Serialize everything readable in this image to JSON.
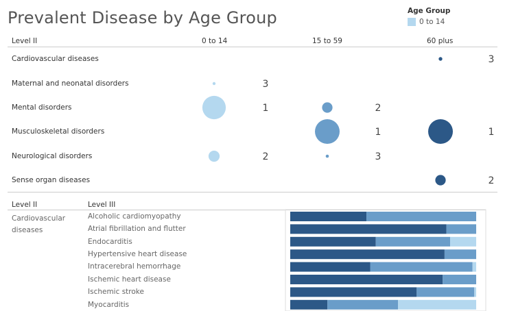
{
  "title": "Prevalent Disease by Age Group",
  "legend": {
    "title": "Age Group",
    "item_label": "0 to 14"
  },
  "colors": {
    "c1": "#b4d8ef",
    "c2": "#6a9dc9",
    "c3": "#2c5887"
  },
  "top": {
    "col_header": "Level II",
    "age_groups": [
      "0 to 14",
      "15 to 59",
      "60 plus"
    ]
  },
  "bottom": {
    "col_level2": "Level II",
    "col_level3": "Level III",
    "category": "Cardiovascular diseases"
  },
  "chart_data": [
    {
      "type": "scatter",
      "title": "Prevalent Disease by Age Group",
      "categories": [
        "Cardiovascular diseases",
        "Maternal and neonatal disorders",
        "Mental disorders",
        "Musculoskeletal disorders",
        "Neurological disorders",
        "Sense organ diseases"
      ],
      "columns": [
        "0 to 14",
        "15 to 59",
        "60 plus"
      ],
      "cells": [
        {
          "row": "Cardiovascular diseases",
          "col": "60 plus",
          "rank": "3",
          "size": 0.15
        },
        {
          "row": "Maternal and neonatal disorders",
          "col": "0 to 14",
          "rank": "3",
          "size": 0.12
        },
        {
          "row": "Mental disorders",
          "col": "0 to 14",
          "rank": "1",
          "size": 0.95
        },
        {
          "row": "Mental disorders",
          "col": "15 to 59",
          "rank": "2",
          "size": 0.42
        },
        {
          "row": "Musculoskeletal disorders",
          "col": "15 to 59",
          "rank": "1",
          "size": 1.0
        },
        {
          "row": "Musculoskeletal disorders",
          "col": "60 plus",
          "rank": "1",
          "size": 1.0
        },
        {
          "row": "Neurological disorders",
          "col": "0 to 14",
          "rank": "2",
          "size": 0.45
        },
        {
          "row": "Neurological disorders",
          "col": "15 to 59",
          "rank": "3",
          "size": 0.13
        },
        {
          "row": "Sense organ diseases",
          "col": "60 plus",
          "rank": "2",
          "size": 0.42
        }
      ]
    },
    {
      "type": "bar",
      "stacked": true,
      "orientation": "horizontal",
      "categories": [
        "Alcoholic cardiomyopathy",
        "Atrial fibrillation and flutter",
        "Endocarditis",
        "Hypertensive heart disease",
        "Intracerebral hemorrhage",
        "Ischemic heart disease",
        "Ischemic stroke",
        "Myocarditis"
      ],
      "series": [
        {
          "values": [
            41,
            84,
            46,
            83,
            43,
            82,
            68,
            20
          ]
        },
        {
          "values": [
            59,
            16,
            40,
            17,
            55,
            18,
            31,
            38
          ]
        },
        {
          "values": [
            0,
            0,
            14,
            0,
            2,
            0,
            1,
            42
          ]
        }
      ],
      "xlim": [
        0,
        100
      ]
    }
  ]
}
